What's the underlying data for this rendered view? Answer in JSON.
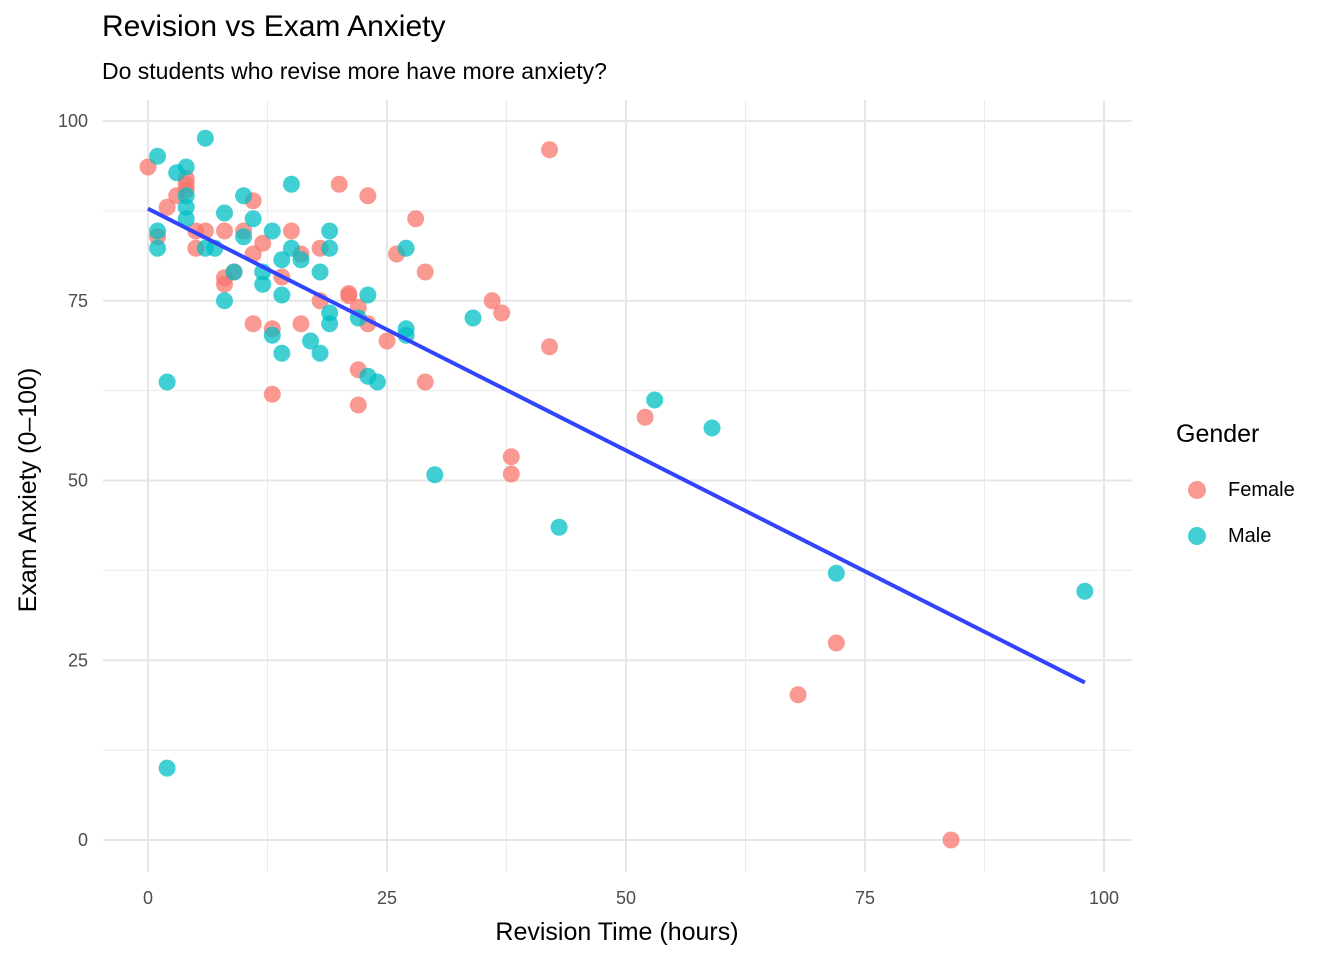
{
  "chart_data": {
    "type": "scatter",
    "title": "Revision vs Exam Anxiety",
    "subtitle": "Do students who revise more have more anxiety?",
    "xlabel": "Revision Time (hours)",
    "ylabel": "Exam Anxiety (0–100)",
    "xlim": [
      -5,
      103
    ],
    "ylim": [
      -4,
      103
    ],
    "x_ticks": [
      0,
      25,
      50,
      75,
      100
    ],
    "y_ticks": [
      0,
      25,
      50,
      75,
      100
    ],
    "x_tick_labels": [
      "0",
      "25",
      "50",
      "75",
      "100"
    ],
    "y_tick_labels": [
      "0",
      "25",
      "50",
      "75",
      "100"
    ],
    "grid": true,
    "legend": {
      "title": "Gender",
      "placement": "right"
    },
    "series": [
      {
        "name": "Female",
        "color": "#F8766D",
        "points": [
          [
            0,
            93.6
          ],
          [
            1,
            83.9
          ],
          [
            2,
            88
          ],
          [
            3,
            89.6
          ],
          [
            4,
            92
          ],
          [
            4,
            91.2
          ],
          [
            4,
            90.4
          ],
          [
            5,
            84.7
          ],
          [
            5,
            82.3
          ],
          [
            6,
            84.7
          ],
          [
            8,
            78.2
          ],
          [
            8,
            77.3
          ],
          [
            8,
            84.7
          ],
          [
            9,
            79
          ],
          [
            10,
            84.7
          ],
          [
            11,
            88.9
          ],
          [
            11,
            81.5
          ],
          [
            11,
            71.8
          ],
          [
            12,
            83
          ],
          [
            13,
            71.1
          ],
          [
            13,
            62
          ],
          [
            14,
            78.3
          ],
          [
            15,
            84.7
          ],
          [
            16,
            81.5
          ],
          [
            16,
            71.8
          ],
          [
            18,
            82.3
          ],
          [
            18,
            75
          ],
          [
            20,
            91.2
          ],
          [
            21,
            76
          ],
          [
            21,
            75.7
          ],
          [
            22,
            74.1
          ],
          [
            22,
            65.4
          ],
          [
            22,
            60.5
          ],
          [
            23,
            89.6
          ],
          [
            23,
            71.8
          ],
          [
            25,
            69.4
          ],
          [
            26,
            81.5
          ],
          [
            28,
            86.4
          ],
          [
            29,
            79
          ],
          [
            29,
            63.7
          ],
          [
            36,
            75
          ],
          [
            37,
            73.3
          ],
          [
            38,
            53.3
          ],
          [
            38,
            50.9
          ],
          [
            42,
            96
          ],
          [
            42,
            68.6
          ],
          [
            52,
            58.8
          ],
          [
            68,
            20.2
          ],
          [
            72,
            27.4
          ],
          [
            84,
            0
          ]
        ]
      },
      {
        "name": "Male",
        "color": "#00BFC4",
        "points": [
          [
            1,
            95.1
          ],
          [
            1,
            84.7
          ],
          [
            1,
            82.3
          ],
          [
            2,
            63.7
          ],
          [
            2,
            10
          ],
          [
            3,
            92.8
          ],
          [
            4,
            93.6
          ],
          [
            4,
            89.6
          ],
          [
            4,
            88
          ],
          [
            4,
            86.4
          ],
          [
            6,
            97.6
          ],
          [
            6,
            82.3
          ],
          [
            7,
            82.3
          ],
          [
            8,
            87.2
          ],
          [
            8,
            75
          ],
          [
            9,
            79
          ],
          [
            10,
            89.6
          ],
          [
            10,
            83.9
          ],
          [
            11,
            86.4
          ],
          [
            12,
            79
          ],
          [
            12,
            77.3
          ],
          [
            13,
            84.7
          ],
          [
            13,
            70.2
          ],
          [
            14,
            80.7
          ],
          [
            14,
            75.8
          ],
          [
            14,
            67.7
          ],
          [
            15,
            91.2
          ],
          [
            15,
            82.3
          ],
          [
            16,
            80.7
          ],
          [
            17,
            69.4
          ],
          [
            18,
            79
          ],
          [
            18,
            67.7
          ],
          [
            19,
            84.7
          ],
          [
            19,
            82.3
          ],
          [
            19,
            73.3
          ],
          [
            19,
            71.8
          ],
          [
            22,
            72.6
          ],
          [
            23,
            75.8
          ],
          [
            23,
            64.5
          ],
          [
            24,
            63.7
          ],
          [
            27,
            82.3
          ],
          [
            27,
            71.1
          ],
          [
            27,
            70.2
          ],
          [
            30,
            50.8
          ],
          [
            34,
            72.6
          ],
          [
            43,
            43.5
          ],
          [
            53,
            61.2
          ],
          [
            59,
            57.3
          ],
          [
            72,
            37.1
          ],
          [
            98,
            34.6
          ]
        ]
      }
    ],
    "fit_line": {
      "color": "#3344FF",
      "x": [
        0,
        98
      ],
      "y": [
        87.8,
        21.9
      ]
    }
  }
}
